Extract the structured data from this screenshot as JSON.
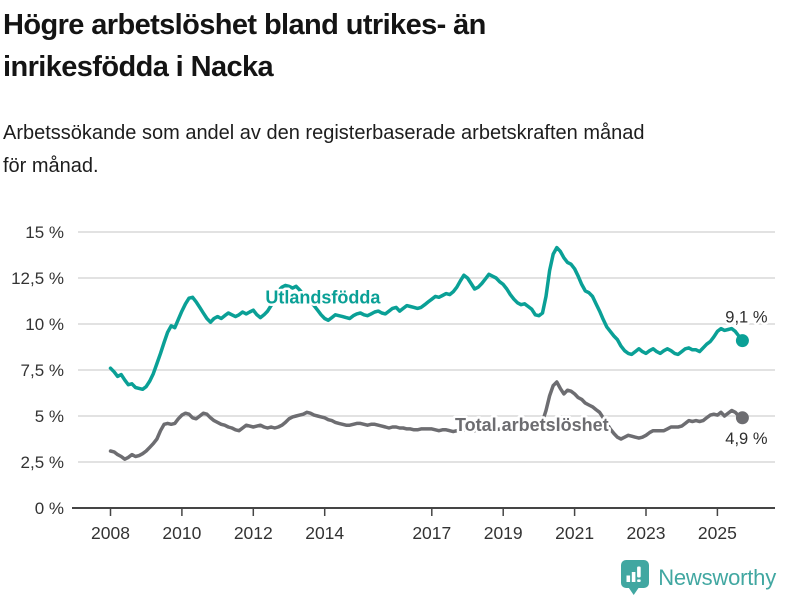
{
  "header": {
    "title_lines": [
      "Högre arbetslöshet bland utrikes- än",
      "inrikesfödda i Nacka"
    ],
    "subtitle_lines": [
      "Arbetssökande som andel av den registerbaserade arbetskraften månad",
      "för månad."
    ]
  },
  "footer": {
    "brand": "Newsworthy",
    "brand_color": "#41a7a1",
    "logo_icon": "bar-chart-speech-bubble-icon"
  },
  "chart_data": {
    "type": "line",
    "title": "Högre arbetslöshet bland utrikes- än inrikesfödda i Nacka",
    "subtitle": "Arbetssökande som andel av den registerbaserade arbetskraften månad för månad.",
    "grid": true,
    "legend_position": "inline-labels",
    "colors": {
      "grid": "#d8d8d8",
      "axis": "#454545",
      "tick_text": "#333333",
      "value_label_text": "#2e2e2e"
    },
    "x_axis": {
      "tick_years": [
        2008,
        2010,
        2012,
        2014,
        2017,
        2019,
        2021,
        2023,
        2025
      ],
      "tick_labels": [
        "2008",
        "2010",
        "2012",
        "2014",
        "2017",
        "2019",
        "2021",
        "2023",
        "2025"
      ],
      "range": [
        2007.3,
        2026.2
      ]
    },
    "y_axis": {
      "unit": "%",
      "ticks": [
        0,
        2.5,
        5,
        7.5,
        10,
        12.5,
        15
      ],
      "tick_labels": [
        "0 %",
        "2,5 %",
        "5 %",
        "7,5 %",
        "10 %",
        "12,5 %",
        "15 %"
      ],
      "range": [
        0,
        15
      ]
    },
    "series": [
      {
        "name": "Utlandsfödda",
        "color": "#0aa096",
        "label_pos": {
          "x": 2013.95,
          "y": 11.45
        },
        "last_value": 9.1,
        "end_label": "9,1 %",
        "end_label_dx": 4,
        "end_label_dy": -18,
        "start": 2008.0,
        "step_years": 0.1,
        "values": [
          7.6,
          7.4,
          7.15,
          7.25,
          6.95,
          6.7,
          6.75,
          6.55,
          6.5,
          6.45,
          6.6,
          6.9,
          7.3,
          7.85,
          8.4,
          9.0,
          9.55,
          9.9,
          9.8,
          10.25,
          10.7,
          11.1,
          11.4,
          11.45,
          11.2,
          10.9,
          10.6,
          10.3,
          10.1,
          10.3,
          10.4,
          10.3,
          10.45,
          10.6,
          10.5,
          10.4,
          10.5,
          10.65,
          10.55,
          10.65,
          10.75,
          10.5,
          10.35,
          10.5,
          10.7,
          11.0,
          11.4,
          11.8,
          12.0,
          12.1,
          12.05,
          11.95,
          12.05,
          11.85,
          11.6,
          11.45,
          11.25,
          11.0,
          10.75,
          10.5,
          10.3,
          10.2,
          10.35,
          10.5,
          10.45,
          10.4,
          10.35,
          10.3,
          10.45,
          10.55,
          10.6,
          10.5,
          10.45,
          10.55,
          10.65,
          10.7,
          10.6,
          10.55,
          10.7,
          10.85,
          10.9,
          10.7,
          10.85,
          11.0,
          10.95,
          10.9,
          10.85,
          10.9,
          11.05,
          11.2,
          11.35,
          11.5,
          11.45,
          11.55,
          11.65,
          11.6,
          11.75,
          12.0,
          12.35,
          12.65,
          12.5,
          12.2,
          11.9,
          12.0,
          12.2,
          12.45,
          12.7,
          12.6,
          12.5,
          12.3,
          12.15,
          11.9,
          11.6,
          11.35,
          11.15,
          11.05,
          11.1,
          10.95,
          10.8,
          10.5,
          10.45,
          10.6,
          11.5,
          12.9,
          13.8,
          14.15,
          13.95,
          13.6,
          13.35,
          13.25,
          13.0,
          12.6,
          12.15,
          11.8,
          11.7,
          11.5,
          11.1,
          10.7,
          10.25,
          9.85,
          9.6,
          9.35,
          9.15,
          8.8,
          8.55,
          8.4,
          8.35,
          8.5,
          8.65,
          8.5,
          8.4,
          8.55,
          8.65,
          8.5,
          8.4,
          8.55,
          8.65,
          8.55,
          8.4,
          8.35,
          8.5,
          8.65,
          8.7,
          8.6,
          8.6,
          8.5,
          8.7,
          8.9,
          9.05,
          9.3,
          9.6,
          9.75,
          9.65,
          9.7,
          9.75,
          9.6,
          9.35,
          9.1
        ]
      },
      {
        "name": "Total arbetslöshet",
        "color": "#6d6d71",
        "label_pos": {
          "x": 2019.8,
          "y": 4.5
        },
        "last_value": 4.9,
        "end_label": "4,9 %",
        "end_label_dx": 4,
        "end_label_dy": 26,
        "start": 2008.0,
        "step_years": 0.1,
        "values": [
          3.1,
          3.05,
          2.9,
          2.8,
          2.65,
          2.75,
          2.9,
          2.8,
          2.85,
          2.95,
          3.1,
          3.3,
          3.5,
          3.75,
          4.2,
          4.55,
          4.6,
          4.55,
          4.6,
          4.85,
          5.05,
          5.15,
          5.1,
          4.9,
          4.85,
          5.0,
          5.15,
          5.1,
          4.9,
          4.75,
          4.65,
          4.55,
          4.5,
          4.4,
          4.35,
          4.25,
          4.2,
          4.35,
          4.5,
          4.45,
          4.4,
          4.45,
          4.5,
          4.4,
          4.35,
          4.4,
          4.35,
          4.4,
          4.5,
          4.65,
          4.85,
          4.95,
          5.0,
          5.05,
          5.1,
          5.2,
          5.15,
          5.05,
          5.0,
          4.95,
          4.9,
          4.8,
          4.75,
          4.65,
          4.6,
          4.55,
          4.5,
          4.5,
          4.55,
          4.6,
          4.6,
          4.55,
          4.5,
          4.55,
          4.55,
          4.5,
          4.45,
          4.4,
          4.35,
          4.4,
          4.4,
          4.35,
          4.35,
          4.3,
          4.3,
          4.25,
          4.25,
          4.3,
          4.3,
          4.3,
          4.3,
          4.25,
          4.2,
          4.25,
          4.25,
          4.2,
          4.15,
          4.2,
          4.2,
          4.25,
          4.25,
          4.2,
          4.2,
          4.25,
          4.25,
          4.2,
          4.2,
          4.25,
          4.25,
          4.3,
          4.3,
          4.35,
          4.35,
          4.4,
          4.4,
          4.45,
          4.45,
          4.5,
          4.5,
          4.5,
          4.5,
          4.7,
          5.3,
          6.1,
          6.65,
          6.85,
          6.5,
          6.2,
          6.4,
          6.35,
          6.2,
          6.0,
          5.9,
          5.7,
          5.6,
          5.5,
          5.35,
          5.2,
          4.9,
          4.6,
          4.3,
          4.05,
          3.85,
          3.75,
          3.85,
          3.95,
          3.9,
          3.85,
          3.8,
          3.85,
          3.95,
          4.1,
          4.2,
          4.2,
          4.2,
          4.2,
          4.3,
          4.4,
          4.4,
          4.4,
          4.45,
          4.6,
          4.75,
          4.7,
          4.75,
          4.7,
          4.75,
          4.9,
          5.05,
          5.1,
          5.05,
          5.2,
          5.0,
          5.15,
          5.3,
          5.2,
          5.0,
          4.9
        ]
      }
    ]
  }
}
